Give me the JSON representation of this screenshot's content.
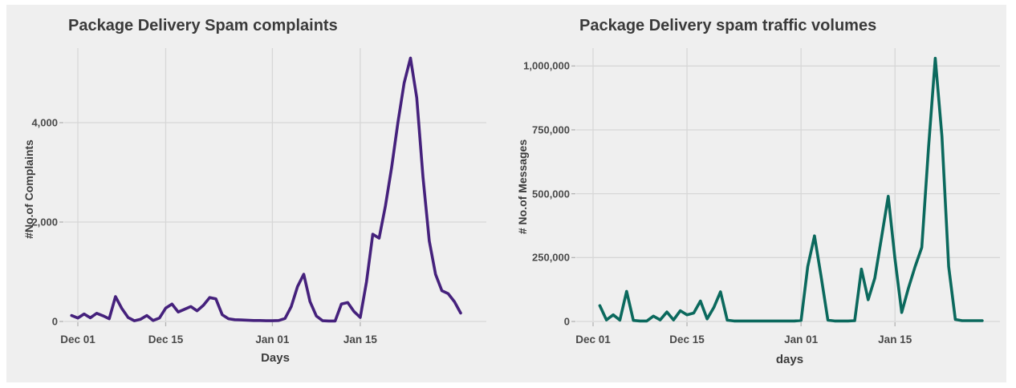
{
  "figure": {
    "background_color": "#ffffff",
    "panel_color": "#efefef",
    "grid_color": "#d7d7d7",
    "tick_mark_color": "#b3b3b3",
    "title_color": "#3a3a3a",
    "tick_label_color": "#4a4a4a"
  },
  "chart_data": [
    {
      "key": "complaints",
      "type": "line",
      "title": "Package Delivery Spam complaints",
      "xlabel": "Days",
      "ylabel": "#No.of Complaints",
      "line_color": "#45217C",
      "legend": "none",
      "grid": true,
      "ylim": [
        0,
        5500
      ],
      "y_tick_values": [
        0,
        2000,
        4000
      ],
      "y_tick_labels": [
        "0",
        "2,000",
        "4,000"
      ],
      "x_tick_labels": [
        "Dec 01",
        "Dec 15",
        "Jan 01",
        "Jan 15"
      ],
      "x_tick_day_offsets": [
        0,
        14,
        31,
        45
      ],
      "start_day_offset": -1,
      "x": [
        "Nov 30",
        "Dec 01",
        "Dec 02",
        "Dec 03",
        "Dec 04",
        "Dec 05",
        "Dec 06",
        "Dec 07",
        "Dec 08",
        "Dec 09",
        "Dec 10",
        "Dec 11",
        "Dec 12",
        "Dec 13",
        "Dec 14",
        "Dec 15",
        "Dec 16",
        "Dec 17",
        "Dec 18",
        "Dec 19",
        "Dec 20",
        "Dec 21",
        "Dec 22",
        "Dec 23",
        "Dec 24",
        "Dec 25",
        "Dec 26",
        "Dec 27",
        "Dec 28",
        "Dec 29",
        "Dec 30",
        "Dec 31",
        "Jan 01",
        "Jan 02",
        "Jan 03",
        "Jan 04",
        "Jan 05",
        "Jan 06",
        "Jan 07",
        "Jan 08",
        "Jan 09",
        "Jan 10",
        "Jan 11",
        "Jan 12",
        "Jan 13",
        "Jan 14",
        "Jan 15",
        "Jan 16",
        "Jan 17",
        "Jan 18",
        "Jan 19",
        "Jan 20",
        "Jan 21",
        "Jan 22",
        "Jan 23",
        "Jan 24",
        "Jan 25",
        "Jan 26",
        "Jan 27",
        "Jan 28",
        "Jan 29",
        "Jan 30",
        "Jan 31"
      ],
      "y": [
        120,
        70,
        150,
        75,
        165,
        115,
        55,
        500,
        265,
        80,
        15,
        45,
        120,
        20,
        70,
        270,
        350,
        190,
        245,
        300,
        215,
        325,
        480,
        455,
        135,
        55,
        35,
        30,
        25,
        20,
        20,
        15,
        15,
        20,
        60,
        300,
        700,
        950,
        400,
        110,
        15,
        10,
        10,
        350,
        380,
        200,
        80,
        800,
        1755,
        1675,
        2320,
        3100,
        4000,
        4800,
        5300,
        4500,
        2900,
        1620,
        950,
        620,
        560,
        400,
        170
      ]
    },
    {
      "key": "traffic",
      "type": "line",
      "title": "Package Delivery spam traffic volumes",
      "xlabel": "days",
      "ylabel": "# No.of Messages",
      "line_color": "#0B695D",
      "legend": "none",
      "grid": true,
      "ylim": [
        0,
        1070000
      ],
      "y_tick_values": [
        0,
        250000,
        500000,
        750000,
        1000000
      ],
      "y_tick_labels": [
        "0",
        "250,000",
        "500,000",
        "750,000",
        "1,000,000"
      ],
      "x_tick_labels": [
        "Dec 01",
        "Dec 15",
        "Jan 01",
        "Jan 15"
      ],
      "x_tick_day_offsets": [
        0,
        14,
        31,
        45
      ],
      "start_day_offset": 1,
      "x": [
        "Dec 02",
        "Dec 03",
        "Dec 04",
        "Dec 05",
        "Dec 06",
        "Dec 07",
        "Dec 08",
        "Dec 09",
        "Dec 10",
        "Dec 11",
        "Dec 12",
        "Dec 13",
        "Dec 14",
        "Dec 15",
        "Dec 16",
        "Dec 17",
        "Dec 18",
        "Dec 19",
        "Dec 20",
        "Dec 21",
        "Dec 22",
        "Dec 23",
        "Dec 24",
        "Dec 25",
        "Dec 26",
        "Dec 27",
        "Dec 28",
        "Dec 29",
        "Dec 30",
        "Dec 31",
        "Jan 01",
        "Jan 02",
        "Jan 03",
        "Jan 04",
        "Jan 05",
        "Jan 06",
        "Jan 07",
        "Jan 08",
        "Jan 09",
        "Jan 10",
        "Jan 11",
        "Jan 12",
        "Jan 13",
        "Jan 14",
        "Jan 15",
        "Jan 16",
        "Jan 17",
        "Jan 18",
        "Jan 19",
        "Jan 20",
        "Jan 21",
        "Jan 22",
        "Jan 23",
        "Jan 24",
        "Jan 25",
        "Jan 26",
        "Jan 27",
        "Jan 28"
      ],
      "y": [
        62000,
        6000,
        26000,
        5000,
        118000,
        4000,
        2000,
        2000,
        21000,
        6000,
        37000,
        6000,
        42000,
        26000,
        33000,
        80000,
        10000,
        55000,
        116000,
        5000,
        2000,
        2000,
        2000,
        2000,
        2000,
        2000,
        2000,
        2000,
        2000,
        2000,
        4000,
        215000,
        335000,
        175000,
        5000,
        2000,
        2000,
        2000,
        3000,
        205000,
        85000,
        170000,
        330000,
        490000,
        245000,
        35000,
        130000,
        215000,
        290000,
        680000,
        1030000,
        725000,
        215000,
        8000,
        3000,
        3000,
        3000,
        3000
      ]
    }
  ]
}
